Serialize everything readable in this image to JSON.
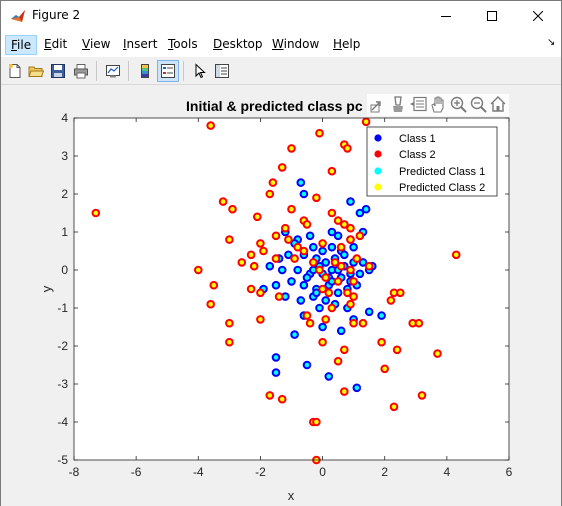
{
  "window": {
    "title": "Figure 2"
  },
  "menu": {
    "items": [
      {
        "label": "File",
        "key": "F",
        "rest": "ile"
      },
      {
        "label": "Edit",
        "key": "E",
        "rest": "dit"
      },
      {
        "label": "View",
        "key": "V",
        "rest": "iew"
      },
      {
        "label": "Insert",
        "key": "I",
        "rest": "nsert"
      },
      {
        "label": "Tools",
        "key": "T",
        "rest": "ools"
      },
      {
        "label": "Desktop",
        "key": "D",
        "rest": "esktop"
      },
      {
        "label": "Window",
        "key": "W",
        "rest": "indow"
      },
      {
        "label": "Help",
        "key": "H",
        "rest": "elp"
      }
    ]
  },
  "toolbar": {
    "buttons": [
      "new-figure-icon",
      "open-file-icon",
      "save-icon",
      "print-icon",
      "link-plot-icon",
      "colorbar-icon",
      "legend-icon",
      "edit-plot-icon",
      "property-inspector-icon"
    ]
  },
  "axes_toolbar": {
    "buttons": [
      "export-icon",
      "brush-icon",
      "data-tips-icon",
      "pan-icon",
      "zoom-in-icon",
      "zoom-out-icon",
      "home-icon"
    ]
  },
  "colors": {
    "class1": "#0000ff",
    "class2": "#ff0000",
    "pred1": "#00ffff",
    "pred2": "#ffff00"
  },
  "chart_data": {
    "type": "scatter",
    "title": "Initial & predicted class pc",
    "xlabel": "x",
    "ylabel": "y",
    "xlim": [
      -8,
      6
    ],
    "ylim": [
      -5,
      4
    ],
    "xticks": [
      "-8",
      "-6",
      "-4",
      "-2",
      "0",
      "2",
      "4",
      "6"
    ],
    "yticks": [
      "4",
      "3",
      "2",
      "1",
      "0",
      "-1",
      "-2",
      "-3",
      "-4",
      "-5"
    ],
    "legend": {
      "position": "top-right",
      "entries": [
        "Class 1",
        "Class 2",
        "Predicted Class 1",
        "Predicted Class 2"
      ]
    },
    "series": [
      {
        "name": "Class 1 / Predicted Class 1",
        "edge": "#0000ff",
        "face": "#00ffff",
        "points": [
          [
            -0.7,
            2.3
          ],
          [
            -0.6,
            2.0
          ],
          [
            0.9,
            1.8
          ],
          [
            1.2,
            1.5
          ],
          [
            1.4,
            1.6
          ],
          [
            0.3,
            1.0
          ],
          [
            -1.2,
            1.0
          ],
          [
            -0.8,
            0.8
          ],
          [
            -0.4,
            0.9
          ],
          [
            0.5,
            0.9
          ],
          [
            0.9,
            0.8
          ],
          [
            1.3,
            1.0
          ],
          [
            -0.9,
            0.7
          ],
          [
            -0.3,
            0.6
          ],
          [
            0.0,
            0.5
          ],
          [
            0.3,
            0.6
          ],
          [
            0.6,
            0.5
          ],
          [
            1.0,
            0.6
          ],
          [
            -1.4,
            0.3
          ],
          [
            -1.1,
            0.4
          ],
          [
            -0.6,
            0.4
          ],
          [
            -0.2,
            0.3
          ],
          [
            0.1,
            0.2
          ],
          [
            0.4,
            0.3
          ],
          [
            0.7,
            0.1
          ],
          [
            1.0,
            0.2
          ],
          [
            1.3,
            0.2
          ],
          [
            1.6,
            0.1
          ],
          [
            -1.7,
            0.1
          ],
          [
            -1.3,
            0.0
          ],
          [
            -0.8,
            0.0
          ],
          [
            -0.4,
            -0.1
          ],
          [
            0.0,
            -0.1
          ],
          [
            0.3,
            0.0
          ],
          [
            0.6,
            -0.2
          ],
          [
            0.9,
            -0.1
          ],
          [
            1.2,
            -0.1
          ],
          [
            -1.9,
            -0.5
          ],
          [
            -1.5,
            -0.4
          ],
          [
            -1.0,
            -0.3
          ],
          [
            -0.6,
            -0.4
          ],
          [
            -0.2,
            -0.5
          ],
          [
            0.2,
            -0.4
          ],
          [
            0.5,
            -0.6
          ],
          [
            0.8,
            -0.5
          ],
          [
            1.1,
            -0.4
          ],
          [
            -1.2,
            -0.7
          ],
          [
            -0.7,
            -0.8
          ],
          [
            -0.3,
            -0.7
          ],
          [
            0.1,
            -0.8
          ],
          [
            0.4,
            -0.9
          ],
          [
            0.8,
            -1.0
          ],
          [
            1.5,
            -1.1
          ],
          [
            -0.1,
            -1.0
          ],
          [
            1.0,
            -1.3
          ],
          [
            -0.6,
            -1.2
          ],
          [
            0.0,
            -1.5
          ],
          [
            -0.9,
            -1.7
          ],
          [
            0.6,
            -1.6
          ],
          [
            -1.5,
            -2.3
          ],
          [
            -1.5,
            -2.7
          ],
          [
            -0.5,
            -2.5
          ],
          [
            0.2,
            -2.8
          ],
          [
            1.1,
            -3.1
          ],
          [
            1.9,
            -1.2
          ],
          [
            0.5,
            0.0
          ],
          [
            0.2,
            -0.2
          ],
          [
            -0.1,
            0.1
          ],
          [
            0.7,
            0.4
          ],
          [
            0.9,
            -0.3
          ],
          [
            -0.5,
            -0.2
          ],
          [
            0.3,
            -0.3
          ],
          [
            -0.3,
            0.0
          ],
          [
            1.5,
            0.0
          ],
          [
            -0.2,
            -0.6
          ]
        ]
      },
      {
        "name": "Class 2 / Predicted Class 2",
        "edge": "#ff0000",
        "face": "#ffff00",
        "points": [
          [
            -7.3,
            1.5
          ],
          [
            -3.6,
            3.8
          ],
          [
            -0.1,
            3.6
          ],
          [
            1.4,
            3.9
          ],
          [
            0.7,
            3.3
          ],
          [
            0.8,
            3.2
          ],
          [
            -1.0,
            3.2
          ],
          [
            -1.3,
            2.7
          ],
          [
            0.3,
            2.6
          ],
          [
            -1.6,
            2.3
          ],
          [
            -1.7,
            2.0
          ],
          [
            -0.2,
            1.9
          ],
          [
            -3.2,
            1.8
          ],
          [
            -2.9,
            1.6
          ],
          [
            -1.0,
            1.6
          ],
          [
            0.3,
            1.5
          ],
          [
            0.5,
            1.3
          ],
          [
            1.9,
            2.4
          ],
          [
            -0.6,
            1.3
          ],
          [
            -0.5,
            1.2
          ],
          [
            -2.1,
            1.4
          ],
          [
            0.7,
            1.2
          ],
          [
            0.9,
            1.1
          ],
          [
            -1.2,
            1.1
          ],
          [
            -1.5,
            0.9
          ],
          [
            -1.1,
            0.8
          ],
          [
            -2.0,
            0.7
          ],
          [
            -3.0,
            0.8
          ],
          [
            0.9,
            0.8
          ],
          [
            1.2,
            0.9
          ],
          [
            -0.8,
            0.6
          ],
          [
            -0.6,
            0.5
          ],
          [
            -1.9,
            0.5
          ],
          [
            -2.3,
            0.4
          ],
          [
            -1.5,
            0.3
          ],
          [
            -0.9,
            0.3
          ],
          [
            -2.6,
            0.2
          ],
          [
            -2.2,
            0.1
          ],
          [
            1.5,
            0.1
          ],
          [
            -4.0,
            0.0
          ],
          [
            -0.3,
            0.2
          ],
          [
            0.6,
            0.1
          ],
          [
            0.9,
            0.0
          ],
          [
            0.4,
            0.2
          ],
          [
            1.0,
            -0.3
          ],
          [
            0.8,
            -0.6
          ],
          [
            1.0,
            -0.7
          ],
          [
            -2.3,
            -0.5
          ],
          [
            -3.5,
            -0.4
          ],
          [
            -2.0,
            -0.6
          ],
          [
            -1.4,
            -0.7
          ],
          [
            -3.6,
            -0.9
          ],
          [
            0.0,
            -0.5
          ],
          [
            0.2,
            -0.6
          ],
          [
            0.9,
            -0.9
          ],
          [
            2.2,
            -0.8
          ],
          [
            2.5,
            -0.6
          ],
          [
            2.3,
            -0.6
          ],
          [
            -0.5,
            -1.2
          ],
          [
            -0.4,
            -1.4
          ],
          [
            -3.0,
            -1.4
          ],
          [
            -2.0,
            -1.3
          ],
          [
            0.1,
            -1.3
          ],
          [
            1.3,
            -1.4
          ],
          [
            1.0,
            -1.4
          ],
          [
            2.9,
            -1.4
          ],
          [
            3.1,
            -1.4
          ],
          [
            -3.0,
            -1.9
          ],
          [
            0.0,
            -1.9
          ],
          [
            1.9,
            -1.9
          ],
          [
            0.7,
            -2.1
          ],
          [
            2.4,
            -2.1
          ],
          [
            3.7,
            -2.2
          ],
          [
            0.5,
            -2.4
          ],
          [
            2.0,
            -2.6
          ],
          [
            0.7,
            -3.2
          ],
          [
            -1.7,
            -3.3
          ],
          [
            -1.3,
            -3.4
          ],
          [
            3.2,
            -3.3
          ],
          [
            2.3,
            -3.6
          ],
          [
            -0.3,
            -4.0
          ],
          [
            -0.2,
            -4.0
          ],
          [
            -0.2,
            -5.0
          ],
          [
            4.3,
            0.4
          ],
          [
            0.5,
            -0.3
          ],
          [
            0.1,
            -0.2
          ],
          [
            0.3,
            -1.0
          ],
          [
            -0.1,
            0.0
          ],
          [
            1.1,
            0.3
          ],
          [
            0.0,
            0.7
          ],
          [
            0.6,
            0.6
          ]
        ]
      }
    ]
  }
}
